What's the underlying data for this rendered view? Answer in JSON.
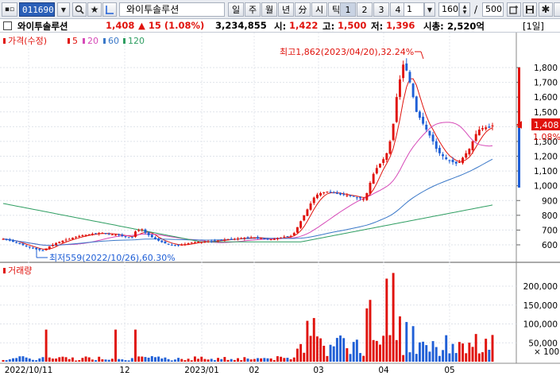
{
  "toolbar": {
    "code": "011690",
    "name": "와이투솔루션",
    "periods": [
      "일",
      "주",
      "월",
      "년",
      "分",
      "시",
      "틱"
    ],
    "numbers": [
      "1",
      "2",
      "3",
      "4"
    ],
    "interval_value": "1",
    "count_value": "160",
    "separator": "/",
    "total_value": "500"
  },
  "info": {
    "name": "와이투솔루션",
    "price": "1,408",
    "change": "▲ 15 (1.08%)",
    "volume": "3,234,855",
    "open_label": "시:",
    "open": "1,422",
    "high_label": "고:",
    "high": "1,500",
    "low_label": "저:",
    "low": "1,396",
    "cap_label": "시총:",
    "cap": "2,520억",
    "period_tag": "[1일]"
  },
  "legend": {
    "price": "가격(수정)",
    "ma": [
      {
        "label": "5",
        "color": "#e0120c"
      },
      {
        "label": "20",
        "color": "#d64ab8"
      },
      {
        "label": "60",
        "color": "#3a78c8"
      },
      {
        "label": "120",
        "color": "#2f9e62"
      }
    ],
    "volume": "거래량"
  },
  "annotations": {
    "high": "최고1,862(2023/04/20),32.24%",
    "low": "최저559(2022/10/26),60.30%"
  },
  "price_axis": {
    "ticks": [
      "1,800",
      "1,700",
      "1,600",
      "1,500",
      "1,400",
      "1,300",
      "1,200",
      "1,100",
      "1,000",
      "900",
      "800",
      "700",
      "600"
    ],
    "current": "1,408",
    "current_pct": "1.08%"
  },
  "volume_axis": {
    "ticks": [
      "200,000",
      "150,000",
      "100,000",
      "50,000"
    ],
    "unit": "× 100"
  },
  "date_axis": [
    "2022/10/11",
    "12",
    "2023/01",
    "02",
    "03",
    "04",
    "05"
  ],
  "colors": {
    "up": "#e0120c",
    "down": "#1f5fd6",
    "ma5": "#e0120c",
    "ma20": "#d64ab8",
    "ma60": "#3a78c8",
    "ma120": "#2f9e62"
  },
  "chart_data": {
    "type": "candlestick",
    "close": [
      640,
      635,
      628,
      620,
      612,
      605,
      598,
      590,
      583,
      576,
      570,
      565,
      562,
      575,
      590,
      600,
      612,
      620,
      628,
      635,
      640,
      648,
      655,
      660,
      665,
      668,
      672,
      675,
      678,
      680,
      680,
      675,
      672,
      670,
      668,
      665,
      660,
      655,
      650,
      650,
      690,
      700,
      705,
      680,
      665,
      650,
      640,
      628,
      618,
      610,
      605,
      600,
      598,
      598,
      600,
      605,
      610,
      615,
      618,
      620,
      620,
      622,
      624,
      625,
      628,
      630,
      632,
      635,
      638,
      640,
      640,
      642,
      645,
      648,
      650,
      650,
      648,
      646,
      645,
      643,
      640,
      638,
      640,
      645,
      650,
      655,
      658,
      660,
      680,
      720,
      760,
      800,
      840,
      880,
      920,
      940,
      950,
      955,
      960,
      955,
      950,
      945,
      940,
      938,
      935,
      930,
      925,
      920,
      915,
      910,
      950,
      1020,
      1080,
      1120,
      1150,
      1180,
      1220,
      1300,
      1420,
      1600,
      1720,
      1820,
      1780,
      1700,
      1600,
      1500,
      1460,
      1420,
      1380,
      1340,
      1300,
      1250,
      1220,
      1200,
      1180,
      1170,
      1160,
      1150,
      1160,
      1190,
      1220,
      1250,
      1300,
      1350,
      1380,
      1390,
      1395,
      1393,
      1408
    ]
  }
}
